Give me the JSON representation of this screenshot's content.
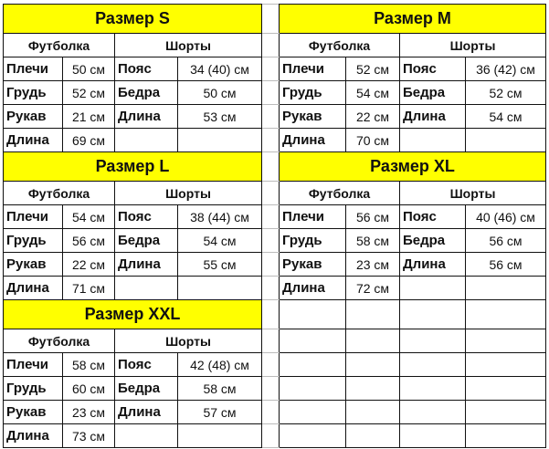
{
  "headers": {
    "shirt": "Футболка",
    "shorts": "Шорты"
  },
  "labels": {
    "shoulders": "Плечи",
    "chest": "Грудь",
    "sleeve": "Рукав",
    "length": "Длина",
    "waist": "Пояс",
    "hips": "Бедра"
  },
  "sizes": [
    {
      "title": "Размер S",
      "shoulders": "50 см",
      "chest": "52 см",
      "sleeve": "21 см",
      "shirt_length": "69 см",
      "waist": "34 (40) см",
      "hips": "50 см",
      "shorts_length": "53 см"
    },
    {
      "title": "Размер M",
      "shoulders": "52 см",
      "chest": "54 см",
      "sleeve": "22 см",
      "shirt_length": "70 см",
      "waist": "36 (42) см",
      "hips": "52 см",
      "shorts_length": "54 см"
    },
    {
      "title": "Размер L",
      "shoulders": "54 см",
      "chest": "56 см",
      "sleeve": "22 см",
      "shirt_length": "71 см",
      "waist": "38 (44) см",
      "hips": "54 см",
      "shorts_length": "55 см"
    },
    {
      "title": "Размер XL",
      "shoulders": "56 см",
      "chest": "58 см",
      "sleeve": "23 см",
      "shirt_length": "72 см",
      "waist": "40 (46) см",
      "hips": "56 см",
      "shorts_length": "56 см"
    },
    {
      "title": "Размер XXL",
      "shoulders": "58 см",
      "chest": "60 см",
      "sleeve": "23 см",
      "shirt_length": "73 см",
      "waist": "42 (48) см",
      "hips": "58 см",
      "shorts_length": "57 см"
    }
  ],
  "colors": {
    "title_bg": "#ffff00",
    "grid": "#111111"
  }
}
